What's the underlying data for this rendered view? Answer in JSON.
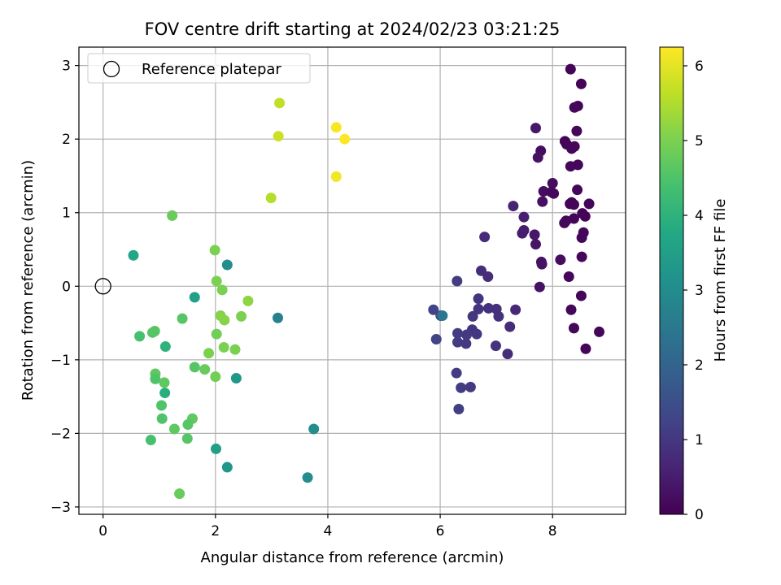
{
  "chart_data": {
    "type": "scatter",
    "title": "FOV centre drift starting at 2024/02/23 03:21:25",
    "xlabel": "Angular distance from reference (arcmin)",
    "ylabel": "Rotation from reference (arcmin)",
    "xlim": [
      -0.43,
      9.3
    ],
    "ylim": [
      -3.1,
      3.25
    ],
    "xticks": [
      0,
      2,
      4,
      6,
      8
    ],
    "xtick_labels": [
      "0",
      "2",
      "4",
      "6",
      "8"
    ],
    "yticks": [
      -3,
      -2,
      -1,
      0,
      1,
      2,
      3
    ],
    "ytick_labels": [
      "−3",
      "−2",
      "−1",
      "0",
      "1",
      "2",
      "3"
    ],
    "grid": true,
    "legend": {
      "location": "upper left",
      "entries": [
        "Reference platepar"
      ]
    },
    "reference_point": {
      "x": 0,
      "y": 0,
      "marker": "open-circle"
    },
    "colorbar": {
      "label": "Hours from first FF file",
      "colormap": "viridis",
      "range": [
        0,
        6.25
      ],
      "ticks": [
        0,
        1,
        2,
        3,
        4,
        5,
        6
      ],
      "tick_labels": [
        "0",
        "1",
        "2",
        "3",
        "4",
        "5",
        "6"
      ]
    },
    "points": [
      {
        "x": 8.32,
        "y": 2.95,
        "t": 0.05
      },
      {
        "x": 8.51,
        "y": 2.75,
        "t": 0.05
      },
      {
        "x": 8.45,
        "y": 2.45,
        "t": 0.05
      },
      {
        "x": 8.39,
        "y": 2.43,
        "t": 0.1
      },
      {
        "x": 8.43,
        "y": 2.11,
        "t": 0.1
      },
      {
        "x": 7.7,
        "y": 2.15,
        "t": 0.4
      },
      {
        "x": 8.22,
        "y": 1.97,
        "t": 0.05
      },
      {
        "x": 8.25,
        "y": 1.93,
        "t": 0.05
      },
      {
        "x": 8.39,
        "y": 1.9,
        "t": 0.1
      },
      {
        "x": 8.34,
        "y": 1.87,
        "t": 0.1
      },
      {
        "x": 7.79,
        "y": 1.84,
        "t": 0.2
      },
      {
        "x": 7.74,
        "y": 1.75,
        "t": 0.3
      },
      {
        "x": 8.45,
        "y": 1.65,
        "t": 0.1
      },
      {
        "x": 8.32,
        "y": 1.63,
        "t": 0.1
      },
      {
        "x": 8.0,
        "y": 1.4,
        "t": 0.2
      },
      {
        "x": 7.84,
        "y": 1.29,
        "t": 0.2
      },
      {
        "x": 7.98,
        "y": 1.28,
        "t": 0.15
      },
      {
        "x": 8.02,
        "y": 1.26,
        "t": 0.15
      },
      {
        "x": 8.44,
        "y": 1.31,
        "t": 0.1
      },
      {
        "x": 7.82,
        "y": 1.15,
        "t": 0.25
      },
      {
        "x": 8.34,
        "y": 1.14,
        "t": 0.05
      },
      {
        "x": 8.31,
        "y": 1.12,
        "t": 0.05
      },
      {
        "x": 8.38,
        "y": 1.11,
        "t": 0.05
      },
      {
        "x": 8.65,
        "y": 1.12,
        "t": 0.1
      },
      {
        "x": 7.3,
        "y": 1.09,
        "t": 0.6
      },
      {
        "x": 8.53,
        "y": 0.99,
        "t": 0.05
      },
      {
        "x": 8.58,
        "y": 0.95,
        "t": 0.05
      },
      {
        "x": 8.38,
        "y": 0.92,
        "t": 0.05
      },
      {
        "x": 8.24,
        "y": 0.89,
        "t": 0.1
      },
      {
        "x": 8.21,
        "y": 0.86,
        "t": 0.1
      },
      {
        "x": 7.49,
        "y": 0.94,
        "t": 0.55
      },
      {
        "x": 7.68,
        "y": 0.7,
        "t": 0.4
      },
      {
        "x": 7.49,
        "y": 0.76,
        "t": 0.5
      },
      {
        "x": 7.46,
        "y": 0.72,
        "t": 0.5
      },
      {
        "x": 8.55,
        "y": 0.73,
        "t": 0.1
      },
      {
        "x": 8.52,
        "y": 0.66,
        "t": 0.1
      },
      {
        "x": 7.7,
        "y": 0.57,
        "t": 0.35
      },
      {
        "x": 6.79,
        "y": 0.67,
        "t": 0.75
      },
      {
        "x": 8.52,
        "y": 0.4,
        "t": 0.1
      },
      {
        "x": 8.14,
        "y": 0.36,
        "t": 0.2
      },
      {
        "x": 7.8,
        "y": 0.33,
        "t": 0.3
      },
      {
        "x": 7.81,
        "y": 0.3,
        "t": 0.3
      },
      {
        "x": 6.73,
        "y": 0.21,
        "t": 0.8
      },
      {
        "x": 6.85,
        "y": 0.13,
        "t": 0.8
      },
      {
        "x": 8.29,
        "y": 0.13,
        "t": 0.1
      },
      {
        "x": 6.3,
        "y": 0.07,
        "t": 1.1
      },
      {
        "x": 7.77,
        "y": -0.01,
        "t": 0.3
      },
      {
        "x": 8.51,
        "y": -0.13,
        "t": 0.1
      },
      {
        "x": 6.68,
        "y": -0.17,
        "t": 0.95
      },
      {
        "x": 5.88,
        "y": -0.32,
        "t": 1.25
      },
      {
        "x": 6.68,
        "y": -0.31,
        "t": 0.95
      },
      {
        "x": 6.86,
        "y": -0.3,
        "t": 0.9
      },
      {
        "x": 7.0,
        "y": -0.31,
        "t": 0.9
      },
      {
        "x": 7.34,
        "y": -0.32,
        "t": 0.7
      },
      {
        "x": 8.33,
        "y": -0.32,
        "t": 0.1
      },
      {
        "x": 6.01,
        "y": -0.4,
        "t": 1.2
      },
      {
        "x": 6.04,
        "y": -0.4,
        "t": 2.5
      },
      {
        "x": 6.58,
        "y": -0.41,
        "t": 1.0
      },
      {
        "x": 7.04,
        "y": -0.41,
        "t": 0.9
      },
      {
        "x": 7.24,
        "y": -0.55,
        "t": 0.8
      },
      {
        "x": 8.38,
        "y": -0.57,
        "t": 0.1
      },
      {
        "x": 6.57,
        "y": -0.59,
        "t": 1.0
      },
      {
        "x": 6.31,
        "y": -0.64,
        "t": 1.1
      },
      {
        "x": 6.65,
        "y": -0.65,
        "t": 1.0
      },
      {
        "x": 6.47,
        "y": -0.66,
        "t": 1.05
      },
      {
        "x": 8.83,
        "y": -0.62,
        "t": 0.1
      },
      {
        "x": 5.93,
        "y": -0.72,
        "t": 1.25
      },
      {
        "x": 6.31,
        "y": -0.76,
        "t": 1.1
      },
      {
        "x": 6.46,
        "y": -0.78,
        "t": 1.05
      },
      {
        "x": 6.99,
        "y": -0.81,
        "t": 0.9
      },
      {
        "x": 8.59,
        "y": -0.85,
        "t": 0.1
      },
      {
        "x": 7.2,
        "y": -0.92,
        "t": 0.8
      },
      {
        "x": 6.29,
        "y": -1.18,
        "t": 1.1
      },
      {
        "x": 6.37,
        "y": -1.38,
        "t": 1.1
      },
      {
        "x": 6.54,
        "y": -1.37,
        "t": 1.05
      },
      {
        "x": 6.33,
        "y": -1.67,
        "t": 1.15
      },
      {
        "x": 3.14,
        "y": 2.49,
        "t": 5.65
      },
      {
        "x": 3.12,
        "y": 2.04,
        "t": 5.75
      },
      {
        "x": 4.15,
        "y": 2.16,
        "t": 6.2
      },
      {
        "x": 4.3,
        "y": 2.0,
        "t": 6.25
      },
      {
        "x": 4.15,
        "y": 1.49,
        "t": 6.15
      },
      {
        "x": 2.99,
        "y": 1.2,
        "t": 5.55
      },
      {
        "x": 1.23,
        "y": 0.96,
        "t": 4.8
      },
      {
        "x": 0.54,
        "y": 0.42,
        "t": 3.7
      },
      {
        "x": 1.99,
        "y": 0.49,
        "t": 5.0
      },
      {
        "x": 2.21,
        "y": 0.29,
        "t": 3.0
      },
      {
        "x": 2.02,
        "y": 0.07,
        "t": 5.0
      },
      {
        "x": 2.12,
        "y": -0.05,
        "t": 5.0
      },
      {
        "x": 1.63,
        "y": -0.15,
        "t": 3.5
      },
      {
        "x": 2.58,
        "y": -0.2,
        "t": 5.2
      },
      {
        "x": 2.09,
        "y": -0.4,
        "t": 5.1
      },
      {
        "x": 2.16,
        "y": -0.46,
        "t": 5.1
      },
      {
        "x": 2.46,
        "y": -0.41,
        "t": 5.0
      },
      {
        "x": 1.41,
        "y": -0.44,
        "t": 4.6
      },
      {
        "x": 3.11,
        "y": -0.43,
        "t": 2.7
      },
      {
        "x": 0.92,
        "y": -0.61,
        "t": 4.6
      },
      {
        "x": 0.88,
        "y": -0.63,
        "t": 4.6
      },
      {
        "x": 0.65,
        "y": -0.68,
        "t": 4.4
      },
      {
        "x": 2.02,
        "y": -0.65,
        "t": 4.9
      },
      {
        "x": 1.11,
        "y": -0.82,
        "t": 4.0
      },
      {
        "x": 2.15,
        "y": -0.83,
        "t": 5.0
      },
      {
        "x": 2.35,
        "y": -0.86,
        "t": 5.0
      },
      {
        "x": 1.88,
        "y": -0.91,
        "t": 5.0
      },
      {
        "x": 1.63,
        "y": -1.1,
        "t": 4.6
      },
      {
        "x": 1.81,
        "y": -1.13,
        "t": 4.8
      },
      {
        "x": 0.93,
        "y": -1.19,
        "t": 4.7
      },
      {
        "x": 0.93,
        "y": -1.26,
        "t": 4.5
      },
      {
        "x": 2.0,
        "y": -1.23,
        "t": 4.9
      },
      {
        "x": 1.09,
        "y": -1.31,
        "t": 4.7
      },
      {
        "x": 2.37,
        "y": -1.25,
        "t": 3.3
      },
      {
        "x": 1.1,
        "y": -1.45,
        "t": 3.9
      },
      {
        "x": 1.04,
        "y": -1.62,
        "t": 4.5
      },
      {
        "x": 1.05,
        "y": -1.8,
        "t": 4.5
      },
      {
        "x": 1.59,
        "y": -1.8,
        "t": 4.7
      },
      {
        "x": 1.51,
        "y": -1.88,
        "t": 4.6
      },
      {
        "x": 1.27,
        "y": -1.94,
        "t": 4.7
      },
      {
        "x": 3.75,
        "y": -1.94,
        "t": 3.0
      },
      {
        "x": 0.85,
        "y": -2.09,
        "t": 4.4
      },
      {
        "x": 1.5,
        "y": -2.07,
        "t": 4.6
      },
      {
        "x": 2.01,
        "y": -2.21,
        "t": 3.5
      },
      {
        "x": 2.21,
        "y": -2.46,
        "t": 3.3
      },
      {
        "x": 3.64,
        "y": -2.6,
        "t": 3.0
      },
      {
        "x": 1.36,
        "y": -2.82,
        "t": 4.8
      }
    ]
  }
}
